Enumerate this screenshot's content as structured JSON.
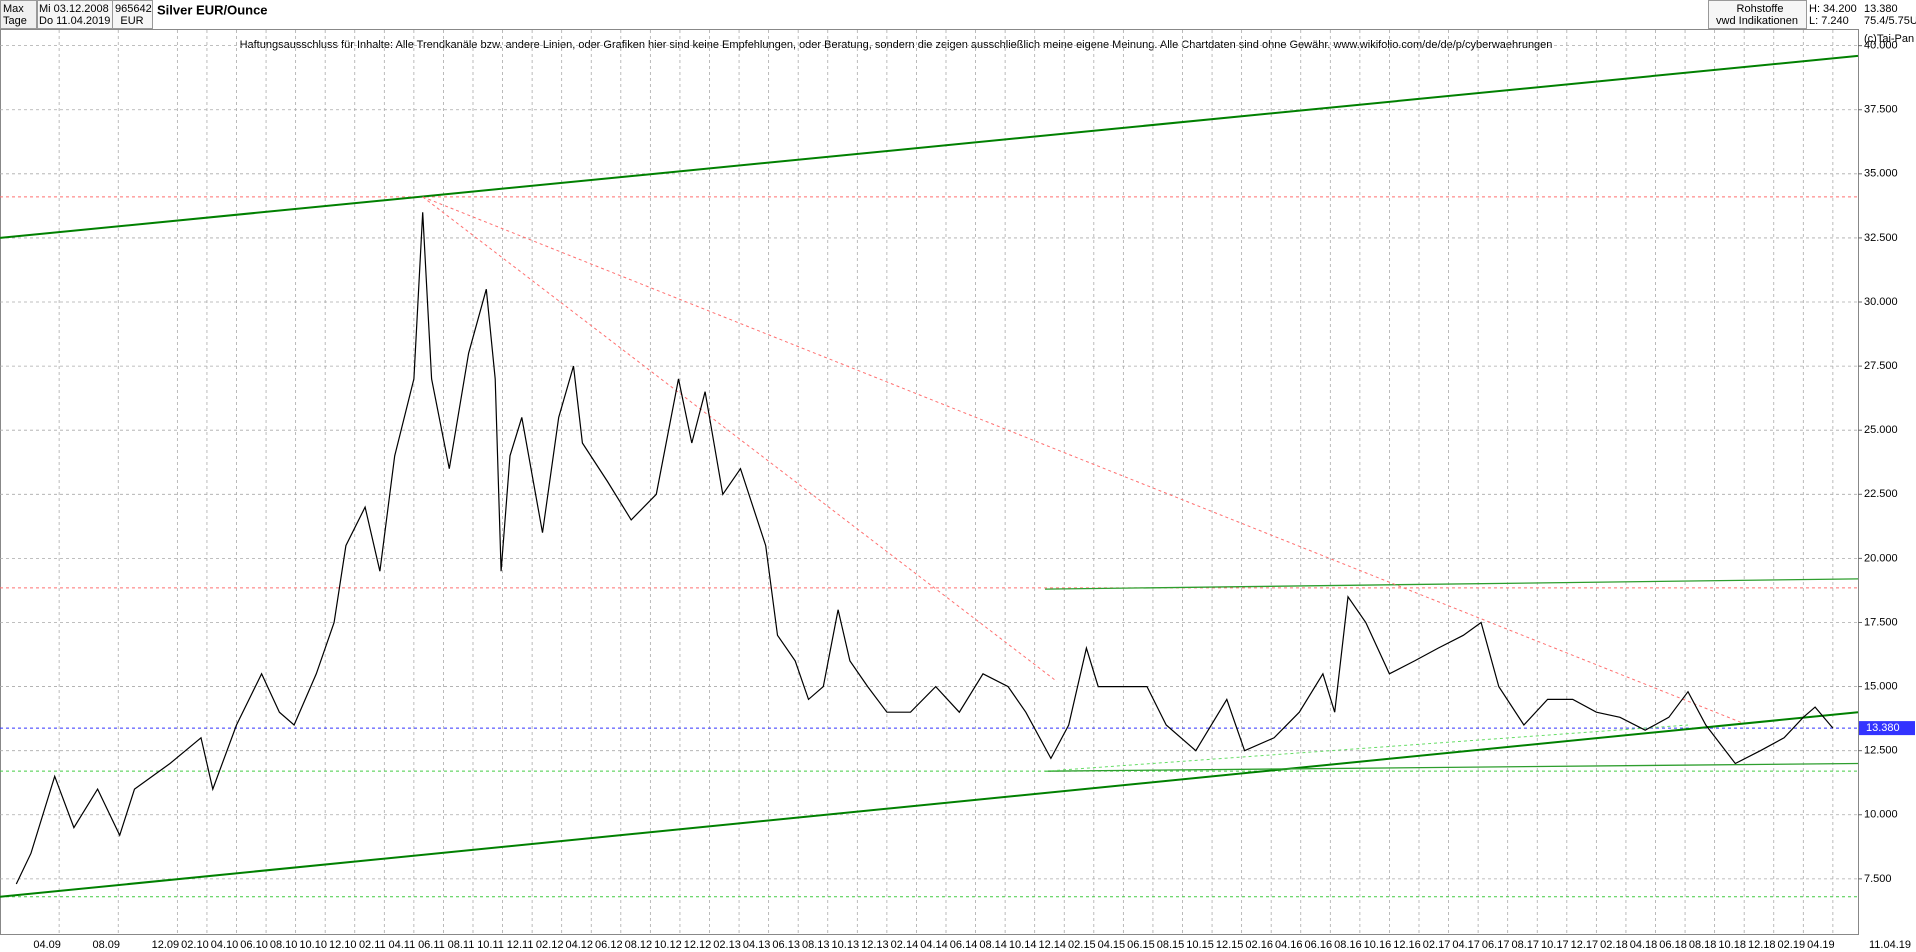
{
  "header": {
    "period": "Max",
    "unit": "Tage",
    "start_date": "Mi 03.12.2008",
    "end_date": "Do 11.04.2019",
    "wkn": "965642",
    "currency": "EUR",
    "category": "Rohstoffe",
    "source": "vwd Indikationen",
    "high": "H: 34.200",
    "low": "L: 7.240",
    "last": "13.380",
    "info": "75.4/5.75U",
    "copyright": "(c)Tai-Pan"
  },
  "chart_data": {
    "type": "line",
    "title": "Silver EUR/Ounce",
    "annotation": "Haftungsausschluss für Inhalte: Alle Trendkanäle bzw. andere Linien, oder Grafiken hier sind keine Empfehlungen, oder Beratung, sondern die zeigen ausschließlich meine eigene Meinung. Alle Chartdaten sind ohne Gewähr. www.wikifolio.com/de/de/p/cyberwaehrungen",
    "xlim": [
      0,
      125.7
    ],
    "ylim": [
      5.31,
      40.61
    ],
    "grid": true,
    "yticks": [
      {
        "value": 7.5,
        "label": "7.500"
      },
      {
        "value": 10,
        "label": "10.000"
      },
      {
        "value": 12.5,
        "label": "12.500"
      },
      {
        "value": 15,
        "label": "15.000"
      },
      {
        "value": 17.5,
        "label": "17.500"
      },
      {
        "value": 20,
        "label": "20.000"
      },
      {
        "value": 22.5,
        "label": "22.500"
      },
      {
        "value": 25,
        "label": "25.000"
      },
      {
        "value": 27.5,
        "label": "27.500"
      },
      {
        "value": 30,
        "label": "30.000"
      },
      {
        "value": 32.5,
        "label": "32.500"
      },
      {
        "value": 35,
        "label": "35.000"
      },
      {
        "value": 37.5,
        "label": "37.500"
      },
      {
        "value": 40,
        "label": "40.000"
      }
    ],
    "xticks": [
      {
        "value": 4,
        "label": "04.09"
      },
      {
        "value": 8,
        "label": "08.09"
      },
      {
        "value": 12,
        "label": "12.09"
      },
      {
        "value": 14,
        "label": "02.10"
      },
      {
        "value": 16,
        "label": "04.10"
      },
      {
        "value": 18,
        "label": "06.10"
      },
      {
        "value": 20,
        "label": "08.10"
      },
      {
        "value": 22,
        "label": "10.10"
      },
      {
        "value": 24,
        "label": "12.10"
      },
      {
        "value": 26,
        "label": "02.11"
      },
      {
        "value": 28,
        "label": "04.11"
      },
      {
        "value": 30,
        "label": "06.11"
      },
      {
        "value": 32,
        "label": "08.11"
      },
      {
        "value": 34,
        "label": "10.11"
      },
      {
        "value": 36,
        "label": "12.11"
      },
      {
        "value": 38,
        "label": "02.12"
      },
      {
        "value": 40,
        "label": "04.12"
      },
      {
        "value": 42,
        "label": "06.12"
      },
      {
        "value": 44,
        "label": "08.12"
      },
      {
        "value": 46,
        "label": "10.12"
      },
      {
        "value": 48,
        "label": "12.12"
      },
      {
        "value": 50,
        "label": "02.13"
      },
      {
        "value": 52,
        "label": "04.13"
      },
      {
        "value": 54,
        "label": "06.13"
      },
      {
        "value": 56,
        "label": "08.13"
      },
      {
        "value": 58,
        "label": "10.13"
      },
      {
        "value": 60,
        "label": "12.13"
      },
      {
        "value": 62,
        "label": "02.14"
      },
      {
        "value": 64,
        "label": "04.14"
      },
      {
        "value": 66,
        "label": "06.14"
      },
      {
        "value": 68,
        "label": "08.14"
      },
      {
        "value": 70,
        "label": "10.14"
      },
      {
        "value": 72,
        "label": "12.14"
      },
      {
        "value": 74,
        "label": "02.15"
      },
      {
        "value": 76,
        "label": "04.15"
      },
      {
        "value": 78,
        "label": "06.15"
      },
      {
        "value": 80,
        "label": "08.15"
      },
      {
        "value": 82,
        "label": "10.15"
      },
      {
        "value": 84,
        "label": "12.15"
      },
      {
        "value": 86,
        "label": "02.16"
      },
      {
        "value": 88,
        "label": "04.16"
      },
      {
        "value": 90,
        "label": "06.16"
      },
      {
        "value": 92,
        "label": "08.16"
      },
      {
        "value": 94,
        "label": "10.16"
      },
      {
        "value": 96,
        "label": "12.16"
      },
      {
        "value": 98,
        "label": "02.17"
      },
      {
        "value": 100,
        "label": "04.17"
      },
      {
        "value": 102,
        "label": "06.17"
      },
      {
        "value": 104,
        "label": "08.17"
      },
      {
        "value": 106,
        "label": "10.17"
      },
      {
        "value": 108,
        "label": "12.17"
      },
      {
        "value": 110,
        "label": "02.18"
      },
      {
        "value": 112,
        "label": "04.18"
      },
      {
        "value": 114,
        "label": "06.18"
      },
      {
        "value": 116,
        "label": "08.18"
      },
      {
        "value": 118,
        "label": "10.18"
      },
      {
        "value": 120,
        "label": "12.18"
      },
      {
        "value": 122,
        "label": "02.19"
      },
      {
        "value": 124,
        "label": "04.19"
      }
    ],
    "x_end_label": "11.04.19",
    "series": [
      {
        "name": "Silver EUR/Ounce",
        "color": "#000000",
        "x": [
          1.1,
          2.1,
          3.7,
          5.0,
          6.6,
          8.1,
          9.1,
          11.5,
          13.6,
          14.4,
          16.0,
          17.7,
          18.9,
          19.9,
          21.4,
          22.6,
          23.4,
          24.7,
          25.7,
          26.7,
          28.0,
          28.6,
          29.2,
          30.4,
          31.7,
          32.9,
          33.5,
          33.9,
          34.5,
          35.3,
          36.7,
          37.8,
          38.8,
          39.4,
          41.1,
          42.7,
          44.4,
          45.9,
          46.8,
          47.7,
          48.9,
          50.1,
          51.8,
          52.6,
          53.8,
          54.7,
          55.7,
          56.7,
          57.5,
          58.7,
          60.0,
          61.6,
          63.3,
          64.9,
          66.5,
          68.2,
          69.4,
          71.1,
          72.3,
          73.5,
          74.3,
          75.6,
          77.6,
          78.9,
          80.9,
          83.0,
          84.2,
          86.2,
          87.9,
          89.5,
          90.3,
          91.2,
          92.4,
          94.0,
          95.7,
          97.3,
          99.0,
          100.2,
          101.4,
          103.1,
          104.7,
          106.4,
          108.0,
          109.6,
          111.3,
          112.9,
          114.2,
          115.4,
          117.4,
          119.1,
          120.7,
          122.0,
          122.8,
          124.0
        ],
        "values": [
          7.3,
          8.5,
          11.5,
          9.5,
          11,
          9.2,
          11,
          12,
          13,
          11,
          13.5,
          15.5,
          14,
          13.5,
          15.5,
          17.5,
          20.5,
          22,
          19.5,
          24,
          27,
          33.5,
          27,
          23.5,
          28,
          30.5,
          27,
          19.5,
          24,
          25.5,
          21,
          25.5,
          27.5,
          24.5,
          23,
          21.5,
          22.5,
          27,
          24.5,
          26.5,
          22.5,
          23.5,
          20.5,
          17,
          16,
          14.5,
          15,
          18,
          16,
          15,
          14,
          14,
          15,
          14,
          15.5,
          15,
          14,
          12.2,
          13.5,
          16.5,
          15,
          15,
          15,
          13.5,
          12.5,
          14.5,
          12.5,
          13,
          14,
          15.5,
          14,
          18.5,
          17.5,
          15.5,
          16,
          16.5,
          17,
          17.5,
          15,
          13.5,
          14.5,
          14.5,
          14,
          13.8,
          13.3,
          13.8,
          14.8,
          13.5,
          12,
          12.5,
          13,
          13.8,
          14.2,
          13.38
        ]
      }
    ],
    "last_label": {
      "value": 13.38,
      "label": "13.380"
    },
    "trend_lines": [
      {
        "x": [
          0,
          125.7
        ],
        "y": [
          32.5,
          39.6
        ],
        "color": "#008000",
        "width": 2
      },
      {
        "x": [
          0,
          125.7
        ],
        "y": [
          6.8,
          14.0
        ],
        "color": "#008000",
        "width": 2
      },
      {
        "x": [
          70.7,
          125.7
        ],
        "y": [
          18.8,
          19.2
        ],
        "color": "#2e9e2e",
        "width": 1.3
      },
      {
        "x": [
          70.7,
          125.7
        ],
        "y": [
          11.7,
          12.0
        ],
        "color": "#2e9e2e",
        "width": 1.3
      },
      {
        "x": [
          70.7,
          114.2
        ],
        "y": [
          11.7,
          13.5
        ],
        "color": "#66dd66",
        "width": 1,
        "dash": true
      },
      {
        "x": [
          28.6,
          117.8
        ],
        "y": [
          34.1,
          13.6
        ],
        "color": "#ff7070",
        "width": 1,
        "dash": true
      },
      {
        "x": [
          28.6,
          71.5
        ],
        "y": [
          34.1,
          15.2
        ],
        "color": "#ff7070",
        "width": 1,
        "dash": true
      }
    ],
    "hlines": [
      {
        "value": 34.1,
        "color": "#ff7070"
      },
      {
        "value": 18.85,
        "color": "#ff7070"
      },
      {
        "value": 13.38,
        "color": "#3333ff"
      },
      {
        "value": 11.7,
        "color": "#44cc44"
      },
      {
        "value": 6.8,
        "color": "#44cc44"
      }
    ]
  }
}
